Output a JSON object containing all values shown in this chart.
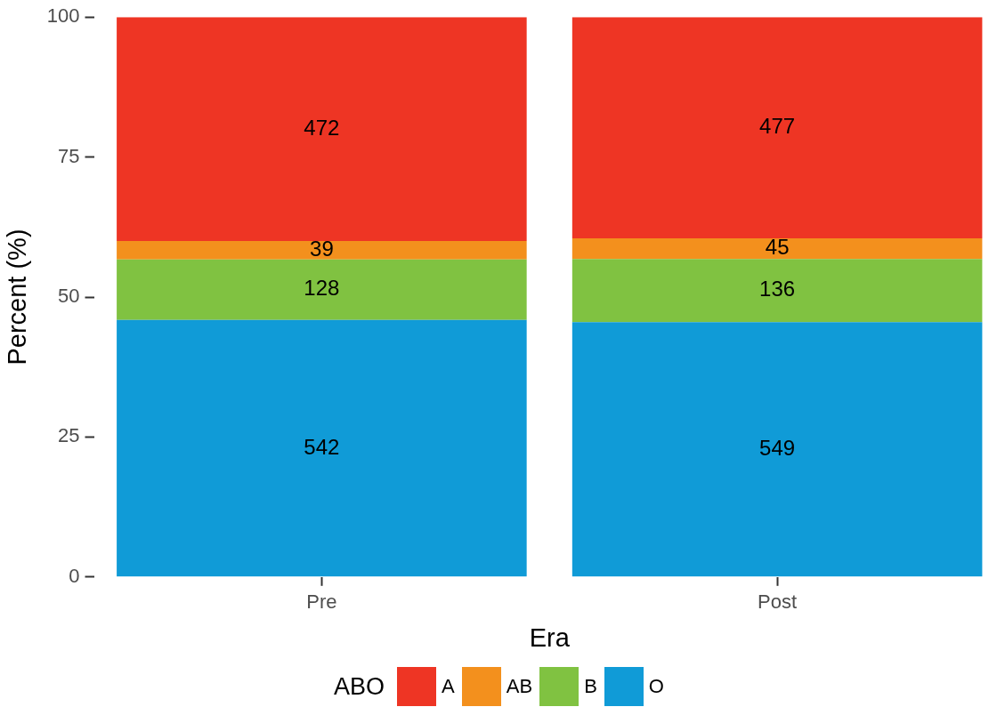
{
  "chart_data": {
    "type": "bar",
    "stacked": true,
    "xlabel": "Era",
    "ylabel": "Percent (%)",
    "legend_title": "ABO",
    "legend": "bottom",
    "grid": false,
    "categories": [
      "Pre",
      "Post"
    ],
    "ylim": [
      0,
      100
    ],
    "yticks": [
      0,
      25,
      50,
      75,
      100
    ],
    "series": [
      {
        "name": "O",
        "color": "#109bd7",
        "values": [
          45.9,
          45.5
        ]
      },
      {
        "name": "B",
        "color": "#80c241",
        "values": [
          10.8,
          11.3
        ]
      },
      {
        "name": "AB",
        "color": "#f3901d",
        "values": [
          3.3,
          3.7
        ]
      },
      {
        "name": "A",
        "color": "#ee3524",
        "values": [
          40.0,
          39.5
        ]
      }
    ],
    "annotations": [
      "542",
      "549",
      "128",
      "136",
      "39",
      "45",
      "472",
      "477"
    ]
  }
}
